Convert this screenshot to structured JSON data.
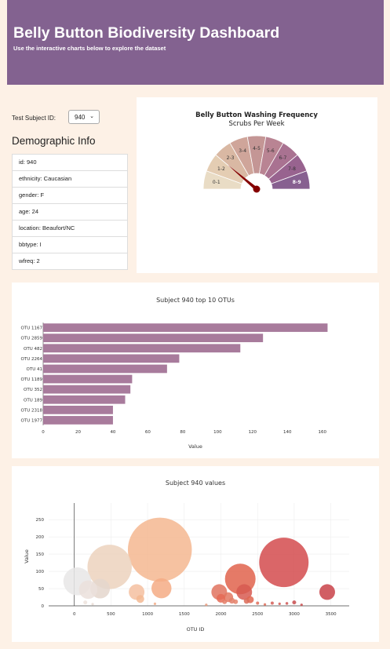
{
  "header": {
    "title": "Belly Button Biodiversity Dashboard",
    "subtitle": "Use the interactive charts below to explore the dataset"
  },
  "selector": {
    "label": "Test Subject ID:",
    "value": "940"
  },
  "demographics": {
    "title": "Demographic Info",
    "items": [
      "id: 940",
      "ethnicity: Caucasian",
      "gender: F",
      "age: 24",
      "location: Beaufort/NC",
      "bbtype: I",
      "wfreq: 2"
    ]
  },
  "colors": {
    "header_bg": "#836290",
    "page_bg": "#fdf1e6",
    "bar": "#a87b9c",
    "needle": "#850000"
  },
  "chart_data": [
    {
      "type": "gauge",
      "title": "Belly Button Washing Frequency",
      "subtitle": "Scrubs Per Week",
      "range": [
        0,
        9
      ],
      "value": 2,
      "segments": [
        "0-1",
        "1-2",
        "2-3",
        "3-4",
        "4-5",
        "5-6",
        "6-7",
        "7-8",
        "8-9"
      ],
      "segment_colors": [
        "#e9dcc5",
        "#e4cdb3",
        "#d9b8a3",
        "#cfa59a",
        "#c49695",
        "#b98493",
        "#a97291",
        "#98638f",
        "#876090"
      ]
    },
    {
      "type": "bar",
      "orientation": "horizontal",
      "title": "Subject 940 top 10 OTUs",
      "xlabel": "Value",
      "categories": [
        "OTU 1167",
        "OTU 2859",
        "OTU 482",
        "OTU 2264",
        "OTU 41",
        "OTU 1189",
        "OTU 352",
        "OTU 189",
        "OTU 2318",
        "OTU 1977"
      ],
      "values": [
        163,
        126,
        113,
        78,
        71,
        51,
        50,
        47,
        40,
        40
      ],
      "xlim": [
        0,
        170
      ],
      "xticks": [
        "0",
        "20",
        "40",
        "60",
        "80",
        "100",
        "120",
        "140",
        "160"
      ]
    },
    {
      "type": "scatter",
      "title": "Subject 940 values",
      "xlabel": "OTU ID",
      "ylabel": "Value",
      "xlim": [
        -350,
        3750
      ],
      "ylim": [
        0,
        280
      ],
      "xticks": [
        "0",
        "500",
        "1000",
        "1500",
        "2000",
        "2500",
        "3000",
        "3500"
      ],
      "yticks": [
        "0",
        "50",
        "100",
        "150",
        "200",
        "250"
      ],
      "x": [
        41,
        189,
        352,
        482,
        1167,
        1189,
        850,
        2264,
        2859,
        3450,
        1977,
        2318,
        2000,
        2100,
        2400,
        2200,
        2700,
        3000,
        150,
        250,
        900,
        1100,
        1800,
        2150,
        2350,
        2500,
        2800,
        2900,
        3100,
        2050,
        2600
      ],
      "y": [
        71,
        47,
        50,
        113,
        163,
        51,
        40,
        78,
        126,
        40,
        40,
        40,
        22,
        25,
        18,
        12,
        8,
        10,
        10,
        5,
        20,
        6,
        3,
        15,
        14,
        8,
        6,
        7,
        3,
        12,
        4
      ],
      "colors": [
        "#e8e6e6",
        "#ebe1dc",
        "#e4d6cc",
        "#ecd2bd",
        "#f5b791",
        "#f4ab85",
        "#f4bfa0",
        "#e0634c",
        "#d44b4d",
        "#c94249",
        "#e0735f",
        "#d75b51",
        "#e56a55",
        "#e27862",
        "#df6650",
        "#e5826b",
        "#d55d56",
        "#c84c4d",
        "#ede3dd",
        "#e9dcd4",
        "#f3b892",
        "#f3ad88",
        "#e99a7b",
        "#e27e68",
        "#dc6b58",
        "#e06d5b",
        "#d35a55",
        "#cf5553",
        "#c94c4e",
        "#e47d66",
        "#e06f5a"
      ]
    }
  ]
}
